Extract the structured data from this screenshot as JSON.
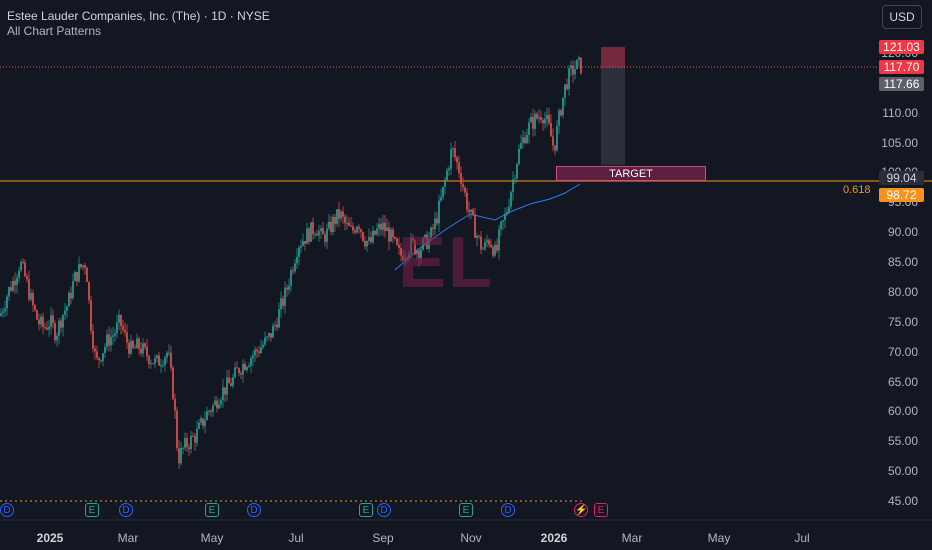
{
  "header": {
    "title": "Estee Lauder Companies, Inc. (The) · 1D · NYSE",
    "subtitle": "All Chart Patterns",
    "currency": "USD"
  },
  "watermark": "EL",
  "target_label": "TARGET",
  "fib_ratio": "0.618",
  "price_tags": {
    "high": "121.03",
    "last": "117.70",
    "prev": "117.66",
    "fib_level": "99.04",
    "fib_alt": "98.72"
  },
  "y_axis": [
    "120.00",
    "115.00",
    "110.00",
    "105.00",
    "100.00",
    "95.00",
    "90.00",
    "85.00",
    "80.00",
    "75.00",
    "70.00",
    "65.00",
    "60.00",
    "55.00",
    "50.00",
    "45.00"
  ],
  "x_axis": [
    {
      "label": "2025",
      "bold": true
    },
    {
      "label": "Mar",
      "bold": false
    },
    {
      "label": "May",
      "bold": false
    },
    {
      "label": "Jul",
      "bold": false
    },
    {
      "label": "Sep",
      "bold": false
    },
    {
      "label": "Nov",
      "bold": false
    },
    {
      "label": "2026",
      "bold": true
    },
    {
      "label": "Mar",
      "bold": false
    },
    {
      "label": "May",
      "bold": false
    },
    {
      "label": "Jul",
      "bold": false
    }
  ],
  "events": [
    {
      "type": "d",
      "label": "D"
    },
    {
      "type": "e",
      "label": "E"
    },
    {
      "type": "d",
      "label": "D"
    },
    {
      "type": "e",
      "label": "E"
    },
    {
      "type": "d",
      "label": "D"
    },
    {
      "type": "e",
      "label": "E"
    },
    {
      "type": "d",
      "label": "D"
    },
    {
      "type": "e",
      "label": "E"
    },
    {
      "type": "d",
      "label": "D"
    },
    {
      "type": "s",
      "label": "⚡"
    },
    {
      "type": "e2",
      "label": "E"
    }
  ],
  "colors": {
    "up": "#26a69a",
    "down": "#ef5350",
    "fib": "#f7931a",
    "ma": "#2f7ae5",
    "accent": "#e91e63"
  },
  "chart_data": {
    "type": "candlestick",
    "ylim": [
      45,
      122
    ],
    "ma_series": "moving average (blue)",
    "close_path": [
      [
        0,
        76
      ],
      [
        8,
        80
      ],
      [
        14,
        82
      ],
      [
        20,
        85
      ],
      [
        26,
        82
      ],
      [
        32,
        78
      ],
      [
        38,
        75
      ],
      [
        44,
        74
      ],
      [
        50,
        75
      ],
      [
        56,
        73
      ],
      [
        62,
        76
      ],
      [
        68,
        78
      ],
      [
        74,
        82
      ],
      [
        80,
        84
      ],
      [
        86,
        85
      ],
      [
        90,
        76
      ],
      [
        96,
        68
      ],
      [
        102,
        70
      ],
      [
        108,
        72
      ],
      [
        114,
        73
      ],
      [
        120,
        75
      ],
      [
        126,
        72
      ],
      [
        132,
        70
      ],
      [
        138,
        71
      ],
      [
        144,
        70
      ],
      [
        150,
        69
      ],
      [
        156,
        68
      ],
      [
        162,
        69
      ],
      [
        168,
        70
      ],
      [
        174,
        62
      ],
      [
        178,
        52
      ],
      [
        184,
        54
      ],
      [
        190,
        55
      ],
      [
        196,
        56
      ],
      [
        202,
        58
      ],
      [
        208,
        60
      ],
      [
        214,
        61
      ],
      [
        220,
        63
      ],
      [
        226,
        64
      ],
      [
        232,
        65
      ],
      [
        238,
        67
      ],
      [
        244,
        68
      ],
      [
        250,
        69
      ],
      [
        256,
        70
      ],
      [
        262,
        71
      ],
      [
        268,
        72
      ],
      [
        274,
        74
      ],
      [
        280,
        77
      ],
      [
        286,
        80
      ],
      [
        292,
        84
      ],
      [
        298,
        88
      ],
      [
        304,
        89
      ],
      [
        310,
        90
      ],
      [
        316,
        91
      ],
      [
        322,
        89
      ],
      [
        328,
        90
      ],
      [
        334,
        92
      ],
      [
        340,
        93
      ],
      [
        346,
        91
      ],
      [
        352,
        90
      ],
      [
        358,
        92
      ],
      [
        364,
        89
      ],
      [
        370,
        88
      ],
      [
        376,
        90
      ],
      [
        382,
        91
      ],
      [
        388,
        90
      ],
      [
        394,
        88
      ],
      [
        400,
        86
      ],
      [
        406,
        87
      ],
      [
        412,
        88
      ],
      [
        418,
        87
      ],
      [
        424,
        88
      ],
      [
        430,
        89
      ],
      [
        436,
        92
      ],
      [
        442,
        96
      ],
      [
        448,
        101
      ],
      [
        452,
        104
      ],
      [
        456,
        102
      ],
      [
        460,
        100
      ],
      [
        464,
        97
      ],
      [
        468,
        94
      ],
      [
        472,
        92
      ],
      [
        476,
        90
      ],
      [
        480,
        88
      ],
      [
        484,
        87
      ],
      [
        488,
        89
      ],
      [
        492,
        88
      ],
      [
        496,
        86
      ],
      [
        500,
        90
      ],
      [
        506,
        93
      ],
      [
        512,
        98
      ],
      [
        518,
        103
      ],
      [
        524,
        106
      ],
      [
        530,
        108
      ],
      [
        536,
        109
      ],
      [
        542,
        110
      ],
      [
        548,
        108
      ],
      [
        554,
        104
      ],
      [
        560,
        110
      ],
      [
        566,
        115
      ],
      [
        572,
        117
      ],
      [
        578,
        118
      ],
      [
        582,
        117.7
      ]
    ]
  }
}
